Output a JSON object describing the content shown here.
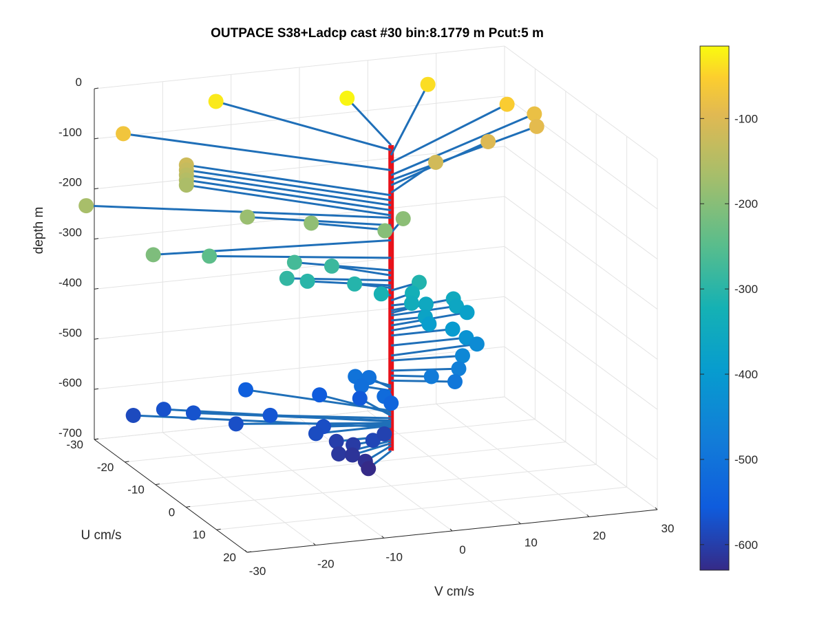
{
  "chart_data": {
    "type": "scatter",
    "title": "OUTPACE S38+Ladcp cast #30 bin:8.1779 m  Pcut:5 m",
    "xlabel": "V cm/s",
    "ylabel": "U cm/s",
    "zlabel": "depth m",
    "xlim": [
      -30,
      30
    ],
    "ylim": [
      -30,
      20
    ],
    "zlim": [
      -700,
      0
    ],
    "xticks": [
      "-30",
      "-20",
      "-10",
      "0",
      "10",
      "20",
      "30"
    ],
    "yticks": [
      "-30",
      "-20",
      "-10",
      "0",
      "10",
      "20"
    ],
    "zticks": [
      "0",
      "-100",
      "-200",
      "-300",
      "-400",
      "-500",
      "-600",
      "-700"
    ],
    "colorbar": {
      "ticks": [
        "-100",
        "-200",
        "-300",
        "-400",
        "-500",
        "-600"
      ],
      "limits": [
        -630,
        -15
      ],
      "colormap": "parula"
    },
    "grid": true,
    "cast_line_color": "#e8121a",
    "vector_color": "#1f6fb8",
    "points": [
      {
        "v": 2.5,
        "u": -20,
        "depth": -20
      },
      {
        "v": -14,
        "u": -26,
        "depth": -30
      },
      {
        "v": 17,
        "u": -26,
        "depth": -40
      },
      {
        "v": 25,
        "u": -18,
        "depth": -55
      },
      {
        "v": -28,
        "u": -25,
        "depth": -70
      },
      {
        "v": 29,
        "u": -18,
        "depth": -80
      },
      {
        "v": 28,
        "u": -15,
        "depth": -90
      },
      {
        "v": 20,
        "u": -13,
        "depth": -100
      },
      {
        "v": 11,
        "u": -10,
        "depth": -115
      },
      {
        "v": -21,
        "u": -20,
        "depth": -120
      },
      {
        "v": -21,
        "u": -20,
        "depth": -130
      },
      {
        "v": -21,
        "u": -20,
        "depth": -140
      },
      {
        "v": -21,
        "u": -20,
        "depth": -150
      },
      {
        "v": -21,
        "u": -20,
        "depth": -160
      },
      {
        "v": -37,
        "u": -17,
        "depth": -165
      },
      {
        "v": -17,
        "u": -9,
        "depth": -180
      },
      {
        "v": -9,
        "u": -6,
        "depth": -190
      },
      {
        "v": 4,
        "u": -5,
        "depth": -195
      },
      {
        "v": 0,
        "u": -2,
        "depth": -200
      },
      {
        "v": -33,
        "u": -4,
        "depth": -210
      },
      {
        "v": -23,
        "u": -8,
        "depth": -245
      },
      {
        "v": -11,
        "u": -7,
        "depth": -270
      },
      {
        "v": -6,
        "u": -6,
        "depth": -280
      },
      {
        "v": -13,
        "u": -5,
        "depth": -290
      },
      {
        "v": -10,
        "u": -5,
        "depth": -300
      },
      {
        "v": -4,
        "u": -3,
        "depth": -305
      },
      {
        "v": 5,
        "u": -2,
        "depth": -310
      },
      {
        "v": -1,
        "u": -1,
        "depth": -320
      },
      {
        "v": 4,
        "u": -2,
        "depth": -330
      },
      {
        "v": 3,
        "u": 0,
        "depth": -340
      },
      {
        "v": 10,
        "u": -2,
        "depth": -350
      },
      {
        "v": 6,
        "u": -2,
        "depth": -355
      },
      {
        "v": 10,
        "u": -1,
        "depth": -360
      },
      {
        "v": 5,
        "u": 0,
        "depth": -370
      },
      {
        "v": 12,
        "u": -2,
        "depth": -380
      },
      {
        "v": 6,
        "u": -1,
        "depth": -390
      },
      {
        "v": 9,
        "u": 0,
        "depth": -400
      },
      {
        "v": 11,
        "u": 0,
        "depth": -420
      },
      {
        "v": 13,
        "u": -1,
        "depth": -440
      },
      {
        "v": 10,
        "u": 1,
        "depth": -450
      },
      {
        "v": 9,
        "u": 2,
        "depth": -470
      },
      {
        "v": 5,
        "u": 2,
        "depth": -480
      },
      {
        "v": 8,
        "u": 3,
        "depth": -490
      },
      {
        "v": -3,
        "u": -5,
        "depth": -500
      },
      {
        "v": -1,
        "u": -5,
        "depth": -505
      },
      {
        "v": -3,
        "u": -3,
        "depth": -510
      },
      {
        "v": -1,
        "u": 0,
        "depth": -520
      },
      {
        "v": 0,
        "u": 0,
        "depth": -535
      },
      {
        "v": -15,
        "u": -14,
        "depth": -550
      },
      {
        "v": -6,
        "u": -10,
        "depth": -555
      },
      {
        "v": -1,
        "u": -8,
        "depth": -560
      },
      {
        "v": -15,
        "u": -6,
        "depth": -565
      },
      {
        "v": -24,
        "u": -11,
        "depth": -570
      },
      {
        "v": -27,
        "u": -14,
        "depth": -572
      },
      {
        "v": -20,
        "u": -6,
        "depth": -575
      },
      {
        "v": -9,
        "u": -2,
        "depth": -578
      },
      {
        "v": -11,
        "u": 0,
        "depth": -580
      },
      {
        "v": -31,
        "u": -15,
        "depth": -583
      },
      {
        "v": -4,
        "u": 3,
        "depth": -590
      },
      {
        "v": -1,
        "u": 0,
        "depth": -595
      },
      {
        "v": -8,
        "u": 0,
        "depth": -600
      },
      {
        "v": -6,
        "u": 1,
        "depth": -605
      },
      {
        "v": -9,
        "u": 3,
        "depth": -610
      },
      {
        "v": -7,
        "u": 3,
        "depth": -615
      },
      {
        "v": -6,
        "u": 5,
        "depth": -620
      },
      {
        "v": -6,
        "u": 6,
        "depth": -630
      }
    ]
  }
}
